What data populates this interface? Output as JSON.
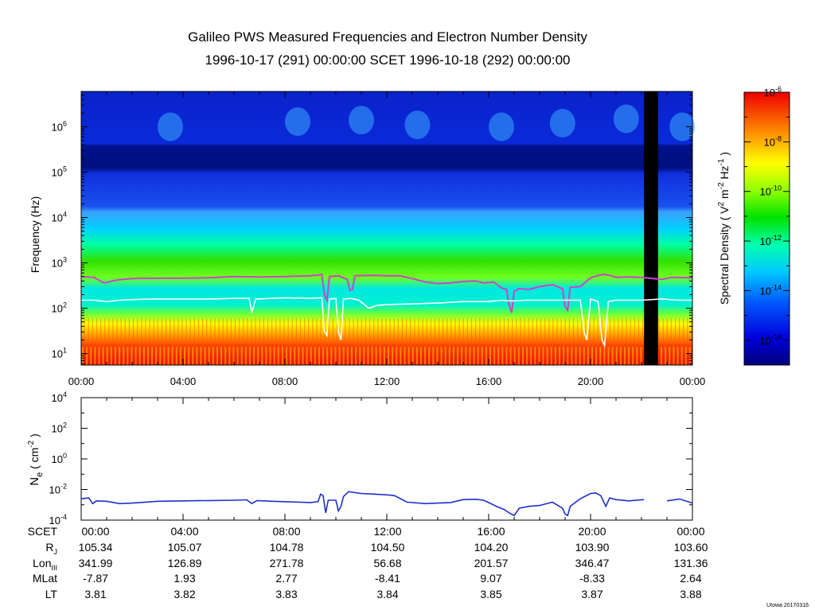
{
  "title": {
    "line1": "Galileo PWS Measured Frequencies and Electron Number Density",
    "line2": "1996-10-17 (291) 00:00:00 SCET 1996-10-18 (292) 00:00:00"
  },
  "credit": "UIowa 20170316",
  "chart_data": [
    {
      "type": "heatmap",
      "name": "spectrogram",
      "ylabel": "Frequency (Hz)",
      "yscale": "log",
      "ylim": [
        5.6,
        6000000
      ],
      "xlim_hours": [
        0,
        24
      ],
      "x_tick_labels": [
        "00:00",
        "04:00",
        "08:00",
        "12:00",
        "16:00",
        "20:00",
        "00:00"
      ],
      "y_tick_labels": [
        {
          "base": "10",
          "exp": "1"
        },
        {
          "base": "10",
          "exp": "2"
        },
        {
          "base": "10",
          "exp": "3"
        },
        {
          "base": "10",
          "exp": "4"
        },
        {
          "base": "10",
          "exp": "5"
        },
        {
          "base": "10",
          "exp": "6"
        }
      ],
      "data_gap_hours": [
        22.1,
        22.65
      ],
      "colorbar": {
        "label_parts": {
          "pre": "Spectral Density ( V",
          "sup1": "2",
          "mid": " m",
          "sup2": "-2",
          "mid2": " Hz",
          "sup3": "-1",
          "post": " )"
        },
        "range_log10": [
          -17,
          -6
        ],
        "tick_labels": [
          {
            "base": "10",
            "exp": "-6"
          },
          {
            "base": "10",
            "exp": "-8"
          },
          {
            "base": "10",
            "exp": "-10"
          },
          {
            "base": "10",
            "exp": "-12"
          },
          {
            "base": "10",
            "exp": "-14"
          },
          {
            "base": "10",
            "exp": "-16"
          }
        ]
      },
      "series": [
        {
          "name": "upper hybrid frequency trace",
          "color": "#cc44cc",
          "points_hours_hz": [
            [
              0,
              500
            ],
            [
              0.5,
              480
            ],
            [
              0.9,
              360
            ],
            [
              1.4,
              420
            ],
            [
              2,
              450
            ],
            [
              3,
              460
            ],
            [
              4,
              460
            ],
            [
              5,
              470
            ],
            [
              6,
              500
            ],
            [
              7,
              490
            ],
            [
              8,
              500
            ],
            [
              9,
              520
            ],
            [
              9.35,
              540
            ],
            [
              9.45,
              560
            ],
            [
              9.55,
              200
            ],
            [
              9.65,
              150
            ],
            [
              9.75,
              500
            ],
            [
              10.1,
              520
            ],
            [
              10.45,
              430
            ],
            [
              10.55,
              250
            ],
            [
              10.65,
              260
            ],
            [
              10.75,
              520
            ],
            [
              11.5,
              530
            ],
            [
              12,
              520
            ],
            [
              12.5,
              520
            ],
            [
              13,
              450
            ],
            [
              13.5,
              380
            ],
            [
              14,
              350
            ],
            [
              14.5,
              360
            ],
            [
              15,
              390
            ],
            [
              15.5,
              400
            ],
            [
              15.8,
              360
            ],
            [
              16.2,
              380
            ],
            [
              16.5,
              280
            ],
            [
              16.7,
              260
            ],
            [
              16.8,
              120
            ],
            [
              16.9,
              80
            ],
            [
              17.0,
              240
            ],
            [
              17.2,
              270
            ],
            [
              17.6,
              260
            ],
            [
              18,
              300
            ],
            [
              18.5,
              330
            ],
            [
              18.9,
              270
            ],
            [
              19.0,
              110
            ],
            [
              19.1,
              90
            ],
            [
              19.2,
              290
            ],
            [
              19.6,
              300
            ],
            [
              20,
              470
            ],
            [
              20.5,
              560
            ],
            [
              20.8,
              520
            ],
            [
              21,
              480
            ],
            [
              21.5,
              490
            ],
            [
              22,
              480
            ],
            [
              22.8,
              430
            ],
            [
              23.2,
              480
            ],
            [
              24,
              470
            ]
          ]
        },
        {
          "name": "plasma frequency trace",
          "color": "#ffffff",
          "points_hours_hz": [
            [
              0,
              150
            ],
            [
              0.5,
              150
            ],
            [
              1,
              140
            ],
            [
              1.5,
              150
            ],
            [
              2,
              155
            ],
            [
              3,
              160
            ],
            [
              4,
              160
            ],
            [
              5,
              160
            ],
            [
              6,
              165
            ],
            [
              6.6,
              165
            ],
            [
              6.7,
              80
            ],
            [
              6.85,
              160
            ],
            [
              7.5,
              165
            ],
            [
              8,
              170
            ],
            [
              9,
              165
            ],
            [
              9.45,
              170
            ],
            [
              9.55,
              30
            ],
            [
              9.65,
              25
            ],
            [
              9.75,
              160
            ],
            [
              10,
              165
            ],
            [
              10.1,
              30
            ],
            [
              10.2,
              20
            ],
            [
              10.3,
              160
            ],
            [
              10.6,
              165
            ],
            [
              10.9,
              150
            ],
            [
              11.3,
              100
            ],
            [
              11.6,
              115
            ],
            [
              12,
              120
            ],
            [
              13,
              125
            ],
            [
              14,
              130
            ],
            [
              15,
              140
            ],
            [
              16,
              140
            ],
            [
              16.5,
              150
            ],
            [
              16.9,
              145
            ],
            [
              17.5,
              150
            ],
            [
              18,
              150
            ],
            [
              19,
              150
            ],
            [
              19.6,
              150
            ],
            [
              19.75,
              30
            ],
            [
              19.85,
              20
            ],
            [
              20,
              160
            ],
            [
              20.3,
              140
            ],
            [
              20.45,
              20
            ],
            [
              20.55,
              15
            ],
            [
              20.7,
              140
            ],
            [
              21,
              150
            ],
            [
              21.6,
              150
            ],
            [
              22,
              150
            ],
            [
              22.8,
              160
            ],
            [
              23.5,
              150
            ],
            [
              24,
              150
            ]
          ]
        }
      ]
    },
    {
      "type": "line",
      "name": "electron density",
      "ylabel_parts": {
        "main": "N",
        "sub": "e",
        "pre": " ( cm",
        "sup": "-2",
        "post": " )"
      },
      "yscale": "log",
      "ylim": [
        0.0001,
        10000
      ],
      "xlim_hours": [
        0,
        24
      ],
      "y_tick_labels": [
        {
          "base": "10",
          "exp": "-4"
        },
        {
          "base": "10",
          "exp": "-2"
        },
        {
          "base": "10",
          "exp": "0"
        },
        {
          "base": "10",
          "exp": "2"
        },
        {
          "base": "10",
          "exp": "4"
        }
      ],
      "series": [
        {
          "name": "Ne",
          "color": "#1f2fcc",
          "points_hours_value": [
            [
              0,
              0.0025
            ],
            [
              0.3,
              0.0028
            ],
            [
              0.45,
              0.0012
            ],
            [
              0.6,
              0.0018
            ],
            [
              1,
              0.0017
            ],
            [
              1.5,
              0.0012
            ],
            [
              2,
              0.0013
            ],
            [
              2.5,
              0.0015
            ],
            [
              3,
              0.0017
            ],
            [
              4,
              0.0018
            ],
            [
              5,
              0.0019
            ],
            [
              6,
              0.002
            ],
            [
              6.5,
              0.0021
            ],
            [
              6.7,
              0.0012
            ],
            [
              6.9,
              0.0019
            ],
            [
              7.5,
              0.0017
            ],
            [
              8,
              0.0016
            ],
            [
              9,
              0.0014
            ],
            [
              9.3,
              0.0016
            ],
            [
              9.4,
              0.005
            ],
            [
              9.5,
              0.004
            ],
            [
              9.6,
              0.0003
            ],
            [
              9.7,
              0.002
            ],
            [
              10,
              0.002
            ],
            [
              10.1,
              0.0004
            ],
            [
              10.2,
              0.0008
            ],
            [
              10.3,
              0.0035
            ],
            [
              10.5,
              0.0072
            ],
            [
              11,
              0.0055
            ],
            [
              11.5,
              0.005
            ],
            [
              12,
              0.0045
            ],
            [
              12.3,
              0.004
            ],
            [
              12.8,
              0.0015
            ],
            [
              13.5,
              0.0012
            ],
            [
              14,
              0.0013
            ],
            [
              14.5,
              0.0014
            ],
            [
              15,
              0.0022
            ],
            [
              15.5,
              0.0023
            ],
            [
              15.8,
              0.002
            ],
            [
              16,
              0.0014
            ],
            [
              16.3,
              0.0008
            ],
            [
              16.6,
              0.0005
            ],
            [
              16.8,
              0.0003
            ],
            [
              17,
              0.0002
            ],
            [
              17.2,
              0.0006
            ],
            [
              17.6,
              0.0008
            ],
            [
              18,
              0.0009
            ],
            [
              18.5,
              0.0015
            ],
            [
              18.9,
              0.0006
            ],
            [
              19.0,
              0.00025
            ],
            [
              19.1,
              0.0002
            ],
            [
              19.2,
              0.0008
            ],
            [
              19.6,
              0.0025
            ],
            [
              20,
              0.0055
            ],
            [
              20.2,
              0.006
            ],
            [
              20.4,
              0.004
            ],
            [
              20.6,
              0.0008
            ],
            [
              20.75,
              0.0028
            ],
            [
              21,
              0.0022
            ],
            [
              21.5,
              0.0018
            ],
            [
              22.1,
              0.0022
            ],
            [
              null,
              null
            ],
            [
              23,
              0.0018
            ],
            [
              23.5,
              0.0024
            ],
            [
              24,
              0.0013
            ]
          ]
        }
      ]
    }
  ],
  "ephemeris": {
    "header_label": "SCET",
    "times": [
      "00:00",
      "04:00",
      "08:00",
      "12:00",
      "16:00",
      "20:00",
      "00:00"
    ],
    "rows": [
      {
        "label": "R",
        "sub": "J",
        "values": [
          "105.34",
          "105.07",
          "104.78",
          "104.50",
          "104.20",
          "103.90",
          "103.60"
        ]
      },
      {
        "label": "Lon",
        "sub": "III",
        "values": [
          "341.99",
          "126.89",
          "271.78",
          "56.68",
          "201.57",
          "346.47",
          "131.36"
        ]
      },
      {
        "label": "MLat",
        "sub": "",
        "values": [
          "-7.87",
          "1.93",
          "2.77",
          "-8.41",
          "9.07",
          "-8.33",
          "2.64"
        ]
      },
      {
        "label": "LT",
        "sub": "",
        "values": [
          "3.81",
          "3.82",
          "3.83",
          "3.84",
          "3.85",
          "3.87",
          "3.88"
        ]
      }
    ]
  }
}
